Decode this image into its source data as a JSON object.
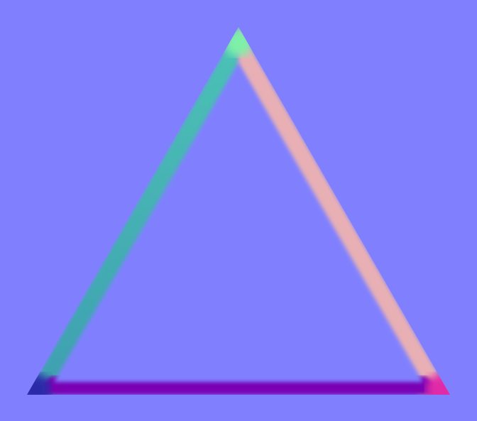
{
  "scene": {
    "shape": "triangle",
    "style": "normal-map bevel",
    "colors": {
      "background": "#8080ff",
      "edge_left": "#4cc3b6",
      "edge_left_dark": "#3e9fb0",
      "edge_right": "#e8b0b4",
      "edge_bottom": "#7a00b4",
      "apex_highlight": "#7ff0a8",
      "corner_left": "#2c2ca8",
      "corner_right": "#e02ca8"
    }
  }
}
